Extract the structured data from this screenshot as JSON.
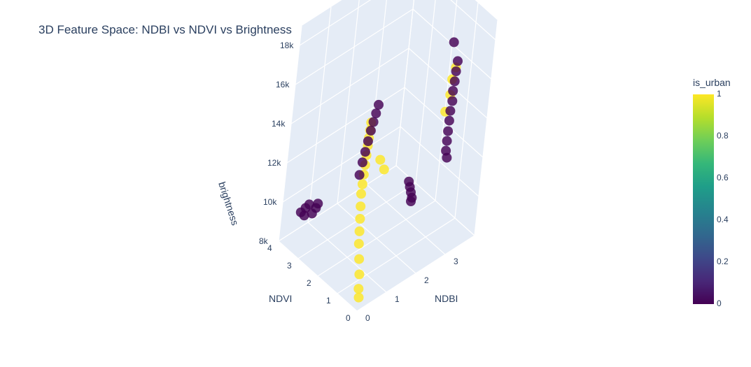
{
  "chart_data": {
    "type": "scatter3d",
    "title": "3D Feature Space: NDBI vs NDVI vs Brightness",
    "axes": {
      "x": {
        "label": "NDBI",
        "ticks": [
          "0",
          "1",
          "2",
          "3"
        ],
        "range": [
          0,
          4
        ]
      },
      "y": {
        "label": "NDVI",
        "ticks": [
          "0",
          "1",
          "2",
          "3",
          "4"
        ],
        "range": [
          0,
          4
        ]
      },
      "z": {
        "label": "brightness",
        "ticks": [
          "8k",
          "10k",
          "12k",
          "14k",
          "16k",
          "18k"
        ],
        "range": [
          8000,
          19000
        ]
      }
    },
    "colorbar": {
      "title": "is_urban",
      "ticks": [
        "0",
        "0.2",
        "0.4",
        "0.6",
        "0.8",
        "1"
      ],
      "colorscale": "Viridis"
    },
    "colors": {
      "urban": "#fde725",
      "non_urban": "#440154",
      "pane": "#e5ecf6",
      "grid": "#ffffff"
    },
    "series": [
      {
        "name": "",
        "is_urban": 1,
        "points": [
          [
            0.05,
            0.05,
            8600
          ],
          [
            0.05,
            0.1,
            9000
          ],
          [
            0.1,
            0.2,
            9600
          ],
          [
            0.15,
            0.35,
            10200
          ],
          [
            0.2,
            0.5,
            10800
          ],
          [
            0.25,
            0.6,
            11300
          ],
          [
            0.3,
            0.7,
            11800
          ],
          [
            0.35,
            0.8,
            12300
          ],
          [
            0.4,
            0.9,
            12800
          ],
          [
            0.45,
            0.95,
            13200
          ],
          [
            0.5,
            1.0,
            13600
          ],
          [
            0.55,
            1.05,
            14000
          ],
          [
            0.6,
            1.1,
            14400
          ],
          [
            0.65,
            1.15,
            14800
          ],
          [
            0.7,
            1.2,
            15100
          ],
          [
            0.75,
            1.25,
            15400
          ],
          [
            0.8,
            1.3,
            15700
          ],
          [
            1.2,
            1.2,
            13500
          ],
          [
            1.3,
            1.1,
            13000
          ],
          [
            2.6,
            0.05,
            16500
          ],
          [
            2.65,
            0.1,
            17200
          ],
          [
            2.7,
            0.05,
            17800
          ],
          [
            2.6,
            0.2,
            15500
          ]
        ]
      },
      {
        "name": "",
        "is_urban": 0,
        "points": [
          [
            0.5,
            1.2,
            13400
          ],
          [
            0.6,
            1.25,
            13900
          ],
          [
            0.7,
            1.3,
            14300
          ],
          [
            0.8,
            1.35,
            14700
          ],
          [
            0.9,
            1.4,
            15100
          ],
          [
            1.0,
            1.45,
            15400
          ],
          [
            1.1,
            1.5,
            15700
          ],
          [
            1.2,
            1.55,
            16000
          ],
          [
            2.7,
            0.1,
            13500
          ],
          [
            2.7,
            0.1,
            14000
          ],
          [
            2.7,
            0.1,
            14500
          ],
          [
            2.72,
            0.12,
            15000
          ],
          [
            2.72,
            0.12,
            15500
          ],
          [
            2.74,
            0.1,
            16000
          ],
          [
            2.74,
            0.12,
            16500
          ],
          [
            2.75,
            0.1,
            17000
          ],
          [
            2.76,
            0.1,
            17500
          ],
          [
            2.78,
            0.1,
            18000
          ],
          [
            2.8,
            0.15,
            13000
          ],
          [
            2.65,
            0.2,
            19000
          ],
          [
            0.6,
            3.7,
            9000
          ],
          [
            0.7,
            3.8,
            9200
          ],
          [
            0.8,
            3.6,
            9000
          ],
          [
            0.9,
            3.9,
            9100
          ],
          [
            0.7,
            4.0,
            8800
          ],
          [
            0.9,
            3.5,
            9500
          ],
          [
            1.0,
            3.7,
            9000
          ],
          [
            3.5,
            2.5,
            8000
          ],
          [
            3.6,
            2.6,
            8000
          ],
          [
            3.7,
            2.8,
            8000
          ],
          [
            3.8,
            3.0,
            8000
          ],
          [
            3.9,
            3.2,
            8000
          ]
        ]
      }
    ]
  }
}
